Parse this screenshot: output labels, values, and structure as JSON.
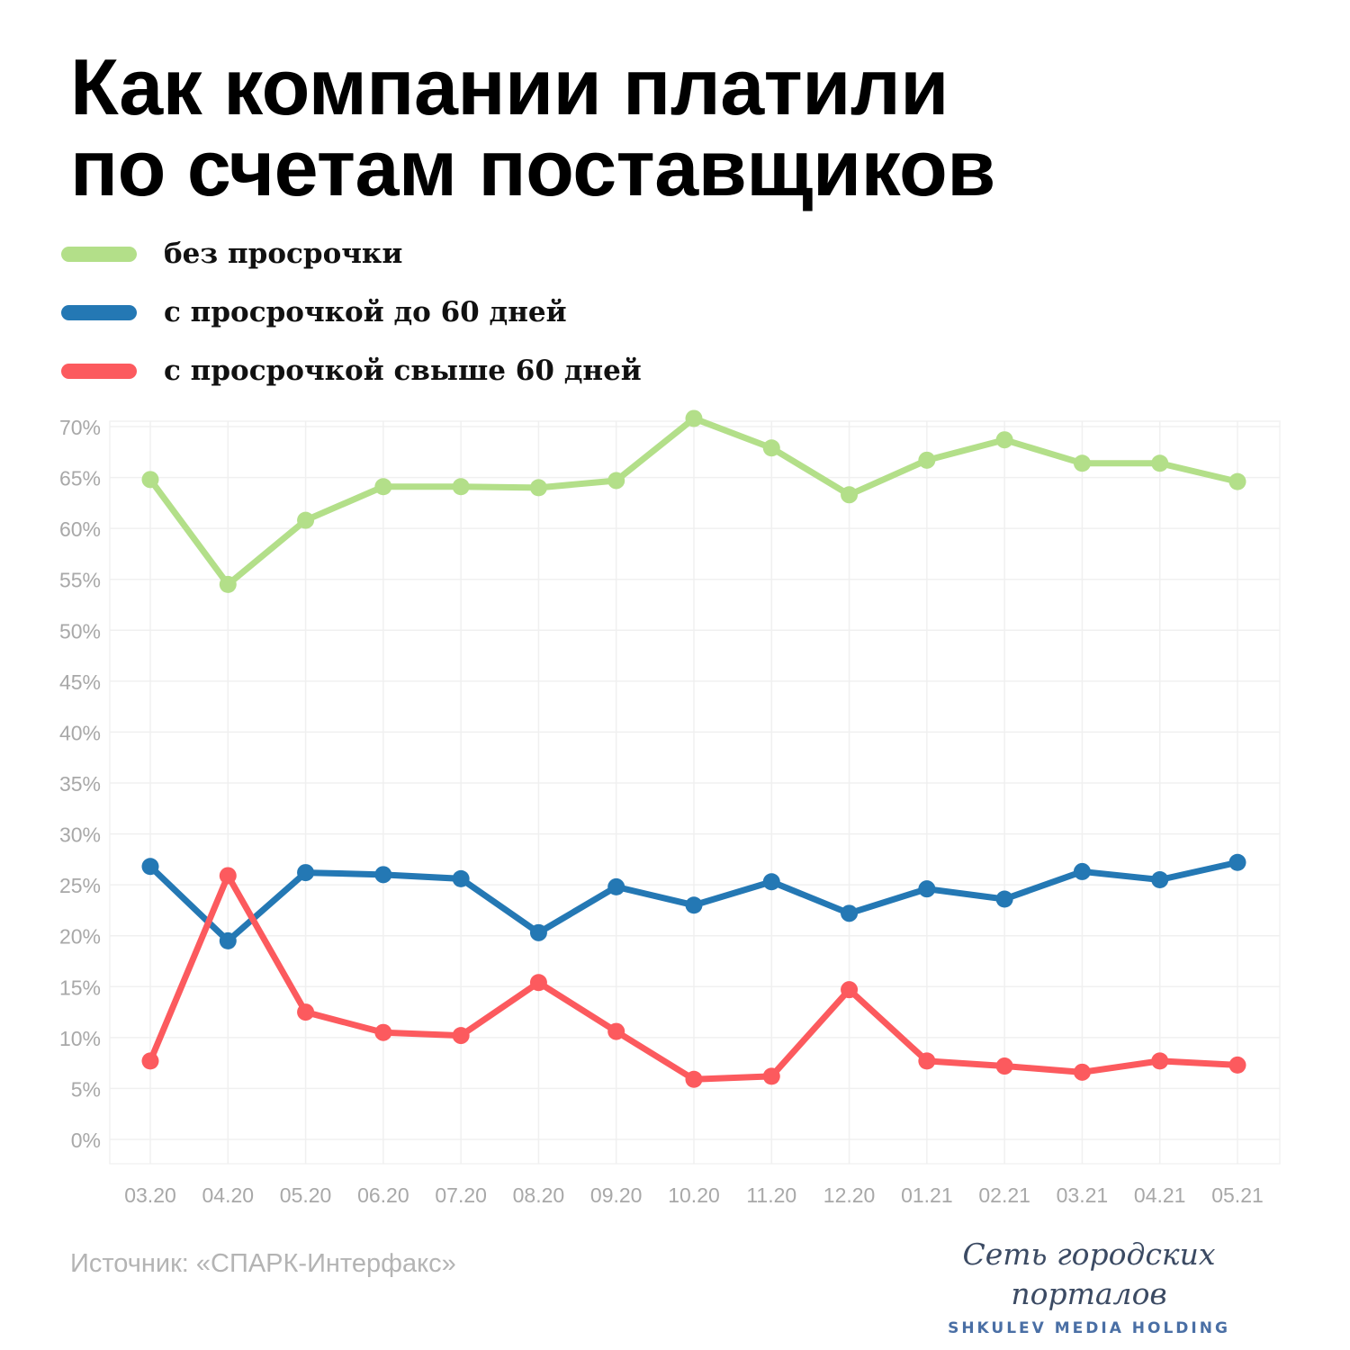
{
  "title": {
    "line1": "Как компании платили",
    "line2": "по счетам поставщиков"
  },
  "legend": [
    {
      "label": "без просрочки",
      "color": "#b3df89"
    },
    {
      "label": "с просрочкой до 60 дней",
      "color": "#2478b4"
    },
    {
      "label": "с просрочкой свыше 60 дней",
      "color": "#fc5a5e"
    }
  ],
  "chart_data": {
    "type": "line",
    "x": [
      "03.20",
      "04.20",
      "05.20",
      "06.20",
      "07.20",
      "08.20",
      "09.20",
      "10.20",
      "11.20",
      "12.20",
      "01.21",
      "02.21",
      "03.21",
      "04.21",
      "05.21"
    ],
    "series": [
      {
        "name": "без просрочки",
        "color": "#b3df89",
        "values": [
          64.8,
          54.5,
          60.8,
          64.1,
          64.1,
          64.0,
          64.7,
          70.8,
          67.9,
          63.3,
          66.7,
          68.7,
          66.4,
          66.4,
          64.6
        ]
      },
      {
        "name": "с просрочкой до 60 дней",
        "color": "#2478b4",
        "values": [
          26.8,
          19.5,
          26.2,
          26.0,
          25.6,
          20.3,
          24.8,
          23.0,
          25.3,
          22.2,
          24.6,
          23.6,
          26.3,
          25.5,
          27.2
        ]
      },
      {
        "name": "с просрочкой свыше 60 дней",
        "color": "#fc5a5e",
        "values": [
          7.7,
          25.9,
          12.5,
          10.5,
          10.2,
          15.4,
          10.6,
          5.9,
          6.2,
          14.7,
          7.7,
          7.2,
          6.6,
          7.7,
          7.3
        ]
      }
    ],
    "yticks": [
      "0%",
      "5%",
      "10%",
      "15%",
      "20%",
      "25%",
      "30%",
      "35%",
      "40%",
      "45%",
      "50%",
      "55%",
      "60%",
      "65%",
      "70%"
    ],
    "ylim": [
      0,
      70
    ],
    "grid": true,
    "legend_position": "top-left"
  },
  "source": "Источник: «СПАРК-Интерфакс»",
  "brand": {
    "script": "Сеть городских порталов",
    "sub": "SHKULEV MEDIA HOLDING"
  }
}
